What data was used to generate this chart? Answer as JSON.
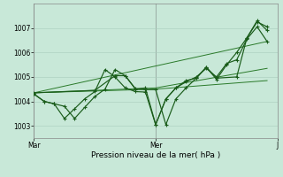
{
  "background_color": "#c8e8d8",
  "grid_color": "#a8ccbc",
  "line_dark": "#1a5c1a",
  "line_mid": "#2a7a2a",
  "title": "Pression niveau de la mer( hPa )",
  "ylim": [
    1002.5,
    1008.0
  ],
  "yticks": [
    1003,
    1004,
    1005,
    1006,
    1007
  ],
  "xtick_labels": [
    "Mar",
    "Mer",
    "J"
  ],
  "xtick_pos": [
    0.0,
    0.5,
    1.0
  ],
  "s1x": [
    0.0,
    0.042,
    0.083,
    0.125,
    0.167,
    0.208,
    0.25,
    0.292,
    0.333,
    0.375,
    0.417,
    0.458,
    0.5,
    0.542,
    0.583,
    0.625,
    0.667,
    0.708,
    0.75,
    0.792,
    0.833,
    0.875,
    0.917,
    0.958
  ],
  "s1y": [
    1004.3,
    1004.0,
    1003.9,
    1003.8,
    1003.3,
    1003.75,
    1004.2,
    1004.5,
    1005.3,
    1005.05,
    1004.5,
    1004.55,
    1003.05,
    1004.1,
    1004.55,
    1004.85,
    1004.95,
    1005.4,
    1004.9,
    1005.5,
    1006.0,
    1006.6,
    1007.25,
    1007.05
  ],
  "s2x": [
    0.0,
    0.042,
    0.083,
    0.125,
    0.167,
    0.208,
    0.25,
    0.292,
    0.333,
    0.375,
    0.417,
    0.458,
    0.5,
    0.542,
    0.583,
    0.625,
    0.667,
    0.708,
    0.75,
    0.792,
    0.833,
    0.875,
    0.917,
    0.958
  ],
  "s2y": [
    1004.3,
    1004.0,
    1003.9,
    1003.3,
    1003.7,
    1004.1,
    1004.4,
    1005.3,
    1005.0,
    1004.55,
    1004.4,
    1004.38,
    1003.05,
    1004.1,
    1004.55,
    1004.8,
    1005.0,
    1005.35,
    1005.0,
    1005.55,
    1005.7,
    1006.55,
    1007.05,
    1006.45
  ],
  "s3x": [
    0.0,
    0.5,
    0.958
  ],
  "s3y": [
    1004.35,
    1004.5,
    1004.85
  ],
  "s4x": [
    0.0,
    0.5,
    0.958
  ],
  "s4y": [
    1004.35,
    1004.55,
    1005.35
  ],
  "s5x": [
    0.0,
    0.958
  ],
  "s5y": [
    1004.35,
    1006.45
  ],
  "s6x": [
    0.0,
    0.25,
    0.333,
    0.375,
    0.417,
    0.458,
    0.5,
    0.542,
    0.583,
    0.625,
    0.667,
    0.708,
    0.75,
    0.833,
    0.875,
    0.917,
    0.958
  ],
  "s6y": [
    1004.35,
    1004.45,
    1005.05,
    1005.05,
    1004.52,
    1004.48,
    1004.48,
    1003.05,
    1004.1,
    1004.55,
    1004.95,
    1005.4,
    1004.95,
    1005.0,
    1006.6,
    1007.3,
    1006.9
  ]
}
